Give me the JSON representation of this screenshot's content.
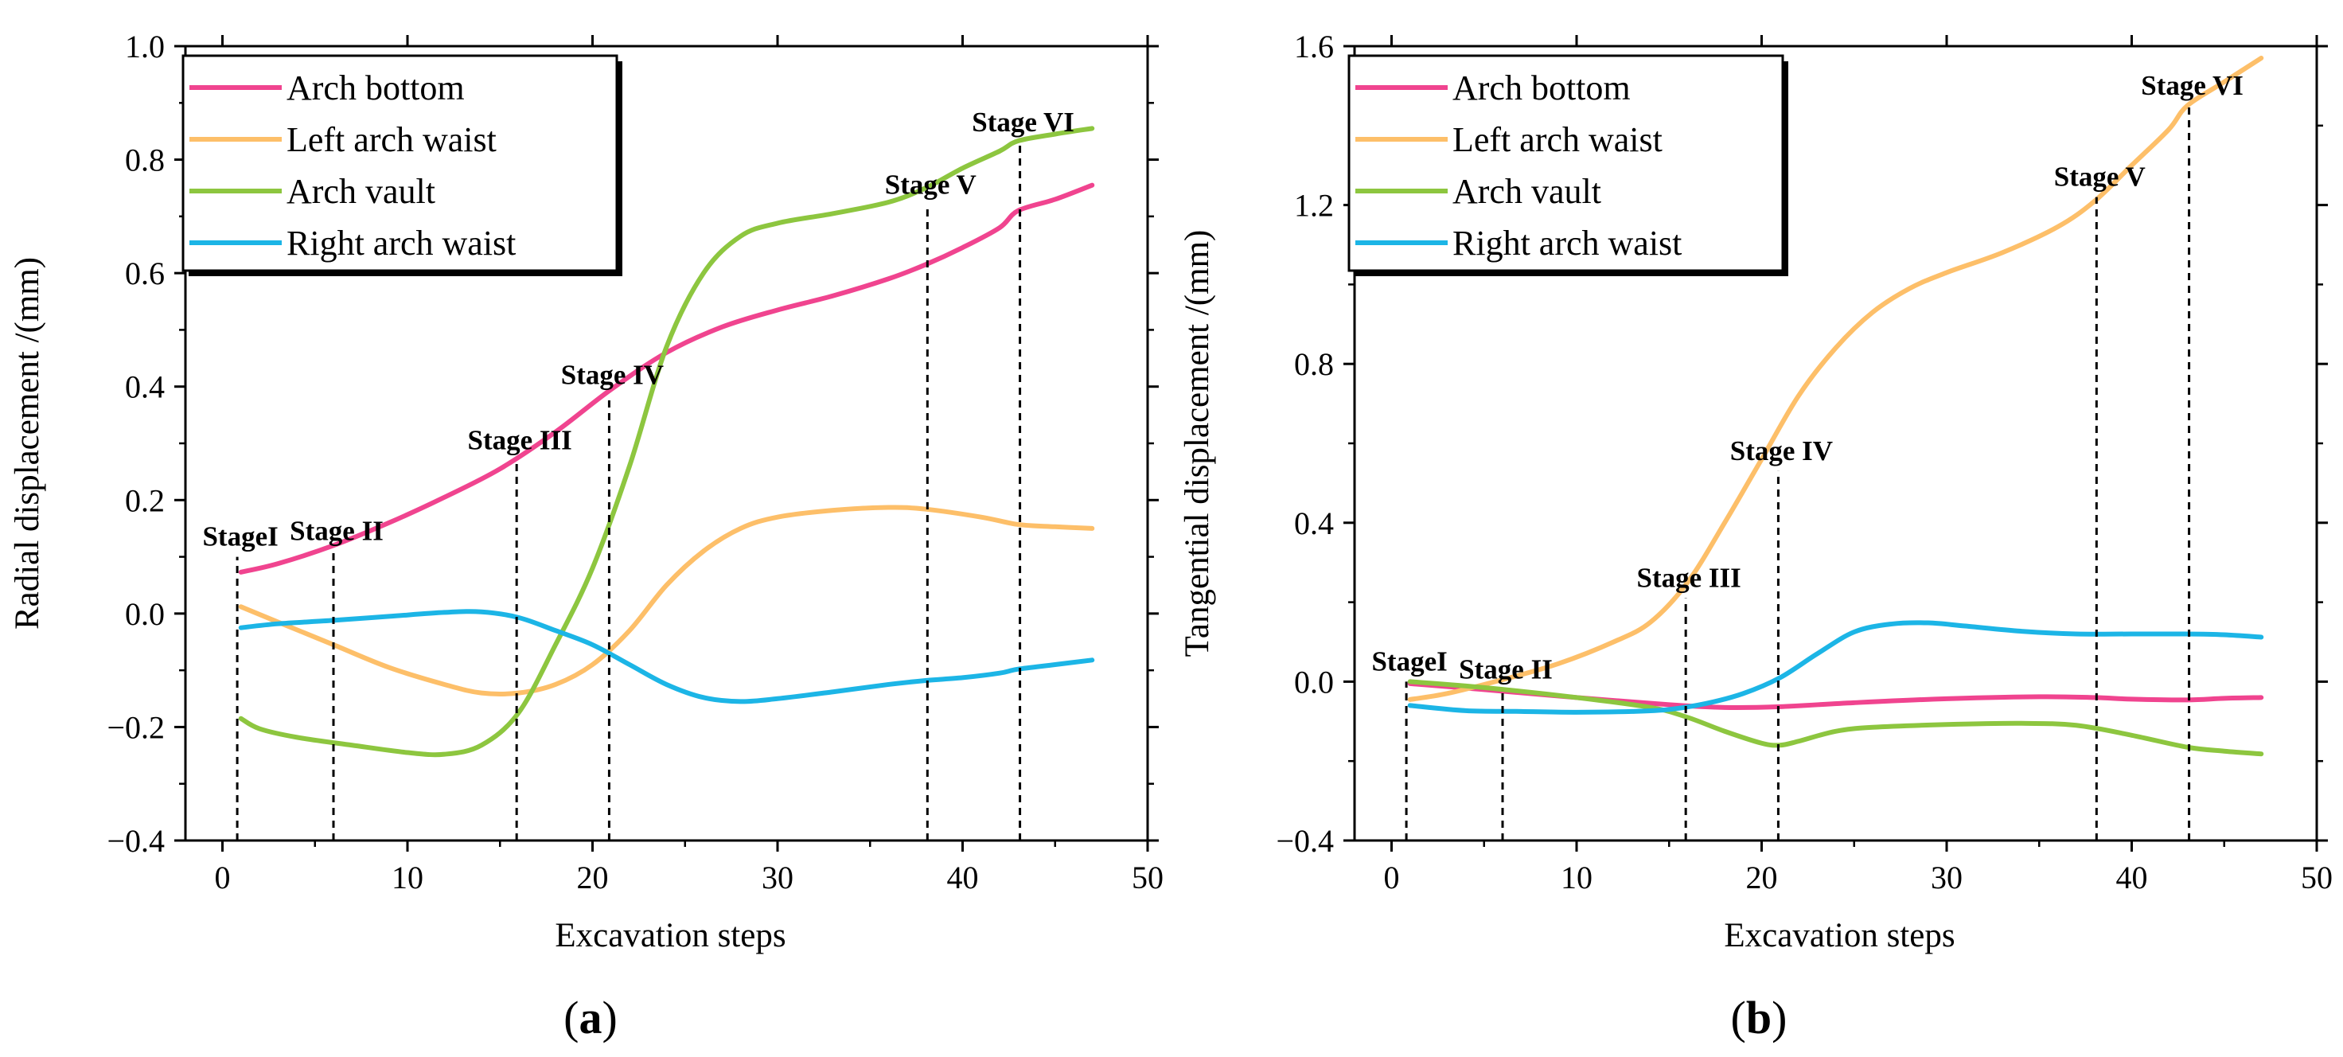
{
  "colors": {
    "arch_bottom": "#F0448F",
    "left_arch_waist": "#FDBF69",
    "arch_vault": "#8DC63F",
    "right_arch_waist": "#1CB5E6"
  },
  "chart_data": [
    {
      "type": "line",
      "panel": {
        "open": "(",
        "letter": "a",
        "close": ")"
      },
      "xlabel": "Excavation steps",
      "ylabel": "Radial displacement /(mm)",
      "xlim": [
        -2,
        50
      ],
      "ylim": [
        -0.4,
        1.0
      ],
      "xticks": [
        0,
        10,
        20,
        30,
        40,
        50
      ],
      "yticks": [
        -0.4,
        -0.2,
        0.0,
        0.2,
        0.4,
        0.6,
        0.8,
        1.0
      ],
      "ytick_labels": [
        "−0.4",
        "−0.2",
        "0.0",
        "0.2",
        "0.4",
        "0.6",
        "0.8",
        "1.0"
      ],
      "xtick_labels": [
        "0",
        "10",
        "20",
        "30",
        "40",
        "50"
      ],
      "legend": {
        "placement": "top-left",
        "entries": [
          "Arch bottom",
          "Left arch waist",
          "Arch vault",
          "Right arch waist"
        ]
      },
      "series": [
        {
          "name": "Arch bottom",
          "color_key": "arch_bottom",
          "x": [
            1,
            3,
            6,
            9,
            12,
            15,
            18,
            21,
            24,
            27,
            30,
            33,
            36,
            38,
            40,
            42,
            43,
            45,
            47
          ],
          "y": [
            0.073,
            0.088,
            0.12,
            0.16,
            0.205,
            0.255,
            0.32,
            0.395,
            0.46,
            0.505,
            0.535,
            0.56,
            0.59,
            0.615,
            0.645,
            0.68,
            0.71,
            0.73,
            0.755
          ]
        },
        {
          "name": "Left arch waist",
          "color_key": "left_arch_waist",
          "x": [
            1,
            3,
            6,
            9,
            12,
            14,
            16,
            18,
            20,
            22,
            24,
            26,
            28,
            30,
            33,
            36,
            38,
            41,
            43,
            45,
            47
          ],
          "y": [
            0.012,
            -0.015,
            -0.055,
            -0.095,
            -0.125,
            -0.14,
            -0.14,
            -0.125,
            -0.09,
            -0.03,
            0.05,
            0.11,
            0.15,
            0.17,
            0.182,
            0.187,
            0.184,
            0.17,
            0.157,
            0.153,
            0.15
          ]
        },
        {
          "name": "Arch vault",
          "color_key": "arch_vault",
          "x": [
            1,
            2,
            4,
            7,
            10,
            12,
            14,
            16,
            18,
            20,
            22,
            24,
            26,
            28,
            30,
            33,
            36,
            38,
            40,
            42,
            43,
            45,
            47
          ],
          "y": [
            -0.185,
            -0.203,
            -0.218,
            -0.232,
            -0.245,
            -0.248,
            -0.232,
            -0.175,
            -0.055,
            0.08,
            0.26,
            0.47,
            0.6,
            0.665,
            0.688,
            0.705,
            0.725,
            0.75,
            0.785,
            0.815,
            0.833,
            0.845,
            0.855
          ]
        },
        {
          "name": "Right arch waist",
          "color_key": "right_arch_waist",
          "x": [
            1,
            3,
            6,
            9,
            12,
            14,
            16,
            18,
            20,
            22,
            24,
            26,
            28,
            30,
            33,
            36,
            38,
            40,
            42,
            43,
            45,
            47
          ],
          "y": [
            -0.025,
            -0.018,
            -0.012,
            -0.005,
            0.002,
            0.003,
            -0.007,
            -0.03,
            -0.055,
            -0.09,
            -0.125,
            -0.148,
            -0.155,
            -0.15,
            -0.138,
            -0.125,
            -0.118,
            -0.113,
            -0.105,
            -0.098,
            -0.09,
            -0.082
          ]
        }
      ],
      "stages": [
        {
          "label": "StageI",
          "x": 0.8,
          "y_top": 0.1
        },
        {
          "label": "Stage II",
          "x": 6.0,
          "y_top": 0.11
        },
        {
          "label": "Stage III",
          "x": 15.9,
          "y_top": 0.27
        },
        {
          "label": "Stage IV",
          "x": 20.9,
          "y_top": 0.385
        },
        {
          "label": "Stage V",
          "x": 38.1,
          "y_top": 0.72
        },
        {
          "label": "Stage VI",
          "x": 43.1,
          "y_top": 0.83
        }
      ]
    },
    {
      "type": "line",
      "panel": {
        "open": "(",
        "letter": "b",
        "close": ")"
      },
      "xlabel": "Excavation steps",
      "ylabel": "Tangential displacement /(mm)",
      "xlim": [
        -2,
        50
      ],
      "ylim": [
        -0.4,
        1.6
      ],
      "xticks": [
        0,
        10,
        20,
        30,
        40,
        50
      ],
      "yticks": [
        -0.4,
        0.0,
        0.4,
        0.8,
        1.2,
        1.6
      ],
      "ytick_labels": [
        "−0.4",
        "0.0",
        "0.4",
        "0.8",
        "1.2",
        "1.6"
      ],
      "xtick_labels": [
        "0",
        "10",
        "20",
        "30",
        "40",
        "50"
      ],
      "legend": {
        "placement": "top-left",
        "entries": [
          "Arch bottom",
          "Left arch waist",
          "Arch vault",
          "Right arch waist"
        ]
      },
      "series": [
        {
          "name": "Arch bottom",
          "color_key": "arch_bottom",
          "x": [
            1,
            5,
            10,
            15,
            18,
            21,
            25,
            30,
            35,
            38,
            40,
            43,
            45,
            47
          ],
          "y": [
            -0.005,
            -0.02,
            -0.04,
            -0.058,
            -0.065,
            -0.063,
            -0.053,
            -0.043,
            -0.038,
            -0.04,
            -0.044,
            -0.046,
            -0.042,
            -0.04
          ]
        },
        {
          "name": "Left arch waist",
          "color_key": "left_arch_waist",
          "x": [
            1,
            3,
            6,
            9,
            12,
            14,
            16,
            18,
            20,
            22,
            24,
            26,
            28,
            30,
            33,
            36,
            38,
            40,
            42,
            43,
            45,
            47
          ],
          "y": [
            -0.045,
            -0.03,
            0.005,
            0.045,
            0.1,
            0.15,
            0.25,
            0.4,
            0.56,
            0.72,
            0.84,
            0.93,
            0.99,
            1.03,
            1.08,
            1.145,
            1.21,
            1.3,
            1.39,
            1.45,
            1.51,
            1.57
          ]
        },
        {
          "name": "Arch vault",
          "color_key": "arch_vault",
          "x": [
            1,
            5,
            10,
            14,
            16,
            18,
            20,
            21,
            22,
            24,
            26,
            30,
            34,
            37,
            40,
            43,
            45,
            47
          ],
          "y": [
            0.0,
            -0.015,
            -0.04,
            -0.065,
            -0.09,
            -0.125,
            -0.155,
            -0.16,
            -0.15,
            -0.125,
            -0.115,
            -0.108,
            -0.105,
            -0.11,
            -0.135,
            -0.165,
            -0.175,
            -0.182
          ]
        },
        {
          "name": "Right arch waist",
          "color_key": "right_arch_waist",
          "x": [
            1,
            4,
            7,
            10,
            13,
            15,
            17,
            19,
            21,
            23,
            25,
            27,
            29,
            31,
            34,
            37,
            40,
            43,
            45,
            47
          ],
          "y": [
            -0.06,
            -0.073,
            -0.075,
            -0.077,
            -0.075,
            -0.07,
            -0.055,
            -0.03,
            0.01,
            0.07,
            0.125,
            0.145,
            0.148,
            0.14,
            0.127,
            0.12,
            0.12,
            0.12,
            0.118,
            0.112
          ]
        }
      ],
      "stages": [
        {
          "label": "StageI",
          "x": 0.8,
          "y_top": 0.0
        },
        {
          "label": "Stage II",
          "x": 6.0,
          "y_top": -0.02
        },
        {
          "label": "Stage III",
          "x": 15.9,
          "y_top": 0.21
        },
        {
          "label": "Stage IV",
          "x": 20.9,
          "y_top": 0.53
        },
        {
          "label": "Stage V",
          "x": 38.1,
          "y_top": 1.22
        },
        {
          "label": "Stage VI",
          "x": 43.1,
          "y_top": 1.45
        }
      ]
    }
  ]
}
